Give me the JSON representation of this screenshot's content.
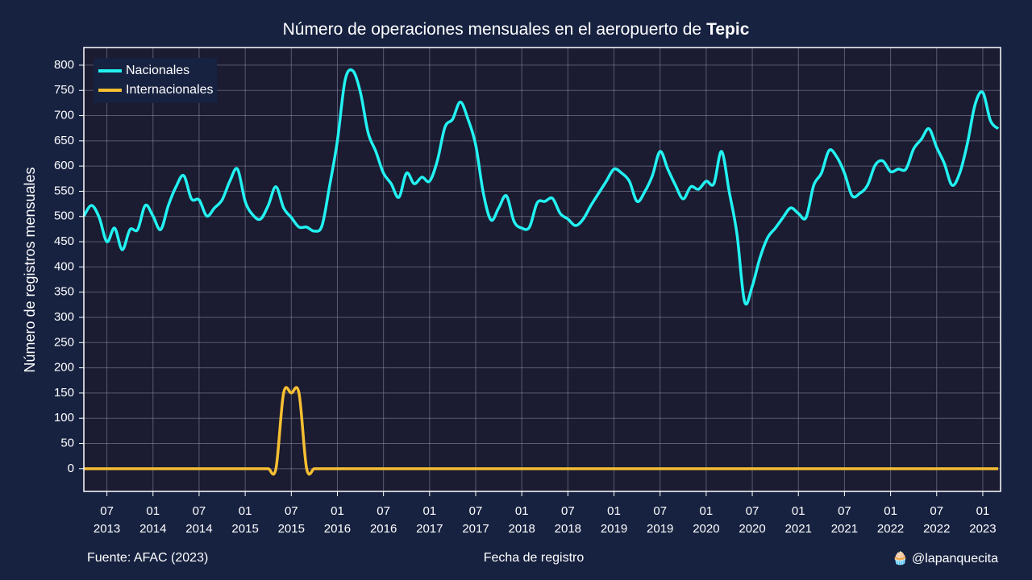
{
  "chart_data": {
    "type": "line",
    "title": "Número de operaciones mensuales en el aeropuerto de",
    "title_highlight": "Tepic",
    "x_label": "Fecha de registro",
    "y_label": "Número de registros mensuales",
    "source": "Fuente: AFAC (2023)",
    "credit": "🧁 @lapanquecita",
    "legend": "upper left",
    "grid": true,
    "xlim": [
      "2013-04",
      "2023-03"
    ],
    "xticks": [
      {
        "value": "2013-07",
        "label": "07\n2013"
      },
      {
        "value": "2014-01",
        "label": "01\n2014"
      },
      {
        "value": "2014-07",
        "label": "07\n2014"
      },
      {
        "value": "2015-01",
        "label": "01\n2015"
      },
      {
        "value": "2015-07",
        "label": "07\n2015"
      },
      {
        "value": "2016-01",
        "label": "01\n2016"
      },
      {
        "value": "2016-07",
        "label": "07\n2016"
      },
      {
        "value": "2017-01",
        "label": "01\n2017"
      },
      {
        "value": "2017-07",
        "label": "07\n2017"
      },
      {
        "value": "2018-01",
        "label": "01\n2018"
      },
      {
        "value": "2018-07",
        "label": "07\n2018"
      },
      {
        "value": "2019-01",
        "label": "01\n2019"
      },
      {
        "value": "2019-07",
        "label": "07\n2019"
      },
      {
        "value": "2020-01",
        "label": "01\n2020"
      },
      {
        "value": "2020-07",
        "label": "07\n2020"
      },
      {
        "value": "2021-01",
        "label": "01\n2021"
      },
      {
        "value": "2021-07",
        "label": "07\n2021"
      },
      {
        "value": "2022-01",
        "label": "01\n2022"
      },
      {
        "value": "2022-07",
        "label": "07\n2022"
      },
      {
        "value": "2023-01",
        "label": "01\n2023"
      }
    ],
    "ylim": [
      -45,
      835
    ],
    "yticks": [
      0,
      50,
      100,
      150,
      200,
      250,
      300,
      350,
      400,
      450,
      500,
      550,
      600,
      650,
      700,
      750,
      800
    ],
    "x": [
      "2013-04",
      "2013-05",
      "2013-06",
      "2013-07",
      "2013-08",
      "2013-09",
      "2013-10",
      "2013-11",
      "2013-12",
      "2014-01",
      "2014-02",
      "2014-03",
      "2014-04",
      "2014-05",
      "2014-06",
      "2014-07",
      "2014-08",
      "2014-09",
      "2014-10",
      "2014-11",
      "2014-12",
      "2015-01",
      "2015-02",
      "2015-03",
      "2015-04",
      "2015-05",
      "2015-06",
      "2015-07",
      "2015-08",
      "2015-09",
      "2015-10",
      "2015-11",
      "2015-12",
      "2016-01",
      "2016-02",
      "2016-03",
      "2016-04",
      "2016-05",
      "2016-06",
      "2016-07",
      "2016-08",
      "2016-09",
      "2016-10",
      "2016-11",
      "2016-12",
      "2017-01",
      "2017-02",
      "2017-03",
      "2017-04",
      "2017-05",
      "2017-06",
      "2017-07",
      "2017-08",
      "2017-09",
      "2017-10",
      "2017-11",
      "2017-12",
      "2018-01",
      "2018-02",
      "2018-03",
      "2018-04",
      "2018-05",
      "2018-06",
      "2018-07",
      "2018-08",
      "2018-09",
      "2018-10",
      "2018-11",
      "2018-12",
      "2019-01",
      "2019-02",
      "2019-03",
      "2019-04",
      "2019-05",
      "2019-06",
      "2019-07",
      "2019-08",
      "2019-09",
      "2019-10",
      "2019-11",
      "2019-12",
      "2020-01",
      "2020-02",
      "2020-03",
      "2020-04",
      "2020-05",
      "2020-06",
      "2020-07",
      "2020-08",
      "2020-09",
      "2020-10",
      "2020-11",
      "2020-12",
      "2021-01",
      "2021-02",
      "2021-03",
      "2021-04",
      "2021-05",
      "2021-06",
      "2021-07",
      "2021-08",
      "2021-09",
      "2021-10",
      "2021-11",
      "2021-12",
      "2022-01",
      "2022-02",
      "2022-03",
      "2022-04",
      "2022-05",
      "2022-06",
      "2022-07",
      "2022-08",
      "2022-09",
      "2022-10",
      "2022-11",
      "2022-12",
      "2023-01",
      "2023-02",
      "2023-03"
    ],
    "series": [
      {
        "name": "Nacionales",
        "color": "#22f2f2",
        "values": [
          501,
          522,
          498,
          450,
          477,
          434,
          474,
          474,
          522,
          501,
          474,
          522,
          559,
          581,
          535,
          533,
          501,
          517,
          533,
          570,
          594,
          530,
          503,
          495,
          522,
          559,
          517,
          498,
          479,
          479,
          471,
          482,
          562,
          650,
          770,
          789,
          746,
          666,
          629,
          586,
          565,
          538,
          586,
          565,
          578,
          570,
          610,
          677,
          693,
          727,
          693,
          642,
          546,
          493,
          517,
          541,
          490,
          477,
          479,
          527,
          530,
          536,
          506,
          495,
          482,
          495,
          522,
          546,
          570,
          594,
          586,
          570,
          530,
          549,
          581,
          629,
          594,
          562,
          535,
          559,
          554,
          570,
          565,
          629,
          549,
          466,
          331,
          362,
          418,
          458,
          477,
          498,
          517,
          506,
          498,
          562,
          586,
          631,
          618,
          586,
          541,
          546,
          562,
          602,
          610,
          589,
          594,
          594,
          634,
          653,
          674,
          637,
          605,
          562,
          586,
          645,
          722,
          746,
          690,
          674
        ]
      },
      {
        "name": "Internacionales",
        "color": "#f5bf32",
        "values": [
          0,
          0,
          0,
          0,
          0,
          0,
          0,
          0,
          0,
          0,
          0,
          0,
          0,
          0,
          0,
          0,
          0,
          0,
          0,
          0,
          0,
          0,
          0,
          0,
          0,
          0,
          150,
          150,
          150,
          0,
          0,
          0,
          0,
          0,
          0,
          0,
          0,
          0,
          0,
          0,
          0,
          0,
          0,
          0,
          0,
          0,
          0,
          0,
          0,
          0,
          0,
          0,
          0,
          0,
          0,
          0,
          0,
          0,
          0,
          0,
          0,
          0,
          0,
          0,
          0,
          0,
          0,
          0,
          0,
          0,
          0,
          0,
          0,
          0,
          0,
          0,
          0,
          0,
          0,
          0,
          0,
          0,
          0,
          0,
          0,
          0,
          0,
          0,
          0,
          0,
          0,
          0,
          0,
          0,
          0,
          0,
          0,
          0,
          0,
          0,
          0,
          0,
          0,
          0,
          0,
          0,
          0,
          0,
          0,
          0,
          0,
          0,
          0,
          0,
          0,
          0,
          0,
          0,
          0,
          0
        ]
      }
    ]
  }
}
